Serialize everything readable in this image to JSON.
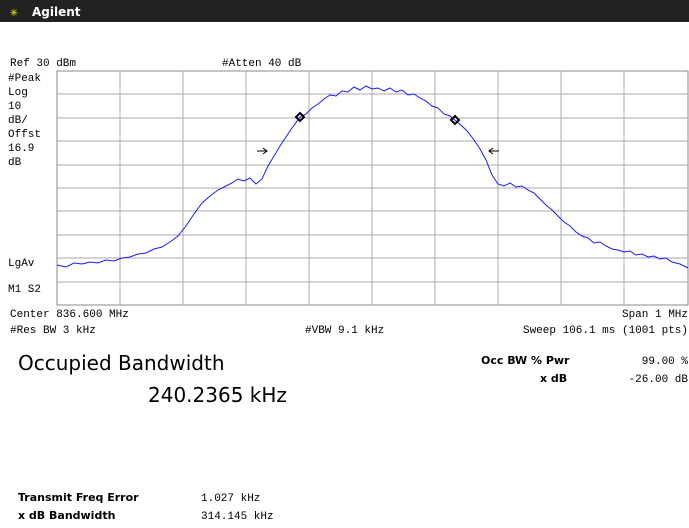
{
  "header": {
    "brand": "Agilent"
  },
  "screen": {
    "ref": "Ref 30 dBm",
    "atten": "#Atten 40 dB",
    "left_labels": [
      "#Peak",
      "Log",
      "10",
      "dB/",
      "Offst",
      "16.9",
      "dB"
    ],
    "lgav": "LgAv",
    "marker": "M1 S2",
    "center": "Center 836.600 MHz",
    "span": "Span 1 MHz",
    "res_bw": "#Res BW 3 kHz",
    "vbw": "#VBW 9.1 kHz",
    "sweep": "Sweep 106.1 ms (1001 pts)"
  },
  "results": {
    "title": "Occupied Bandwidth",
    "value": "240.2365 kHz",
    "occ_label": "Occ BW % Pwr",
    "occ_value": "99.00 %",
    "xdb_label": "x dB",
    "xdb_value": "-26.00 dB",
    "freq_error_label": "Transmit Freq Error",
    "freq_error_value": "1.027 kHz",
    "xdb_bw_label": "x dB Bandwidth",
    "xdb_bw_value": "314.145 kHz"
  }
}
